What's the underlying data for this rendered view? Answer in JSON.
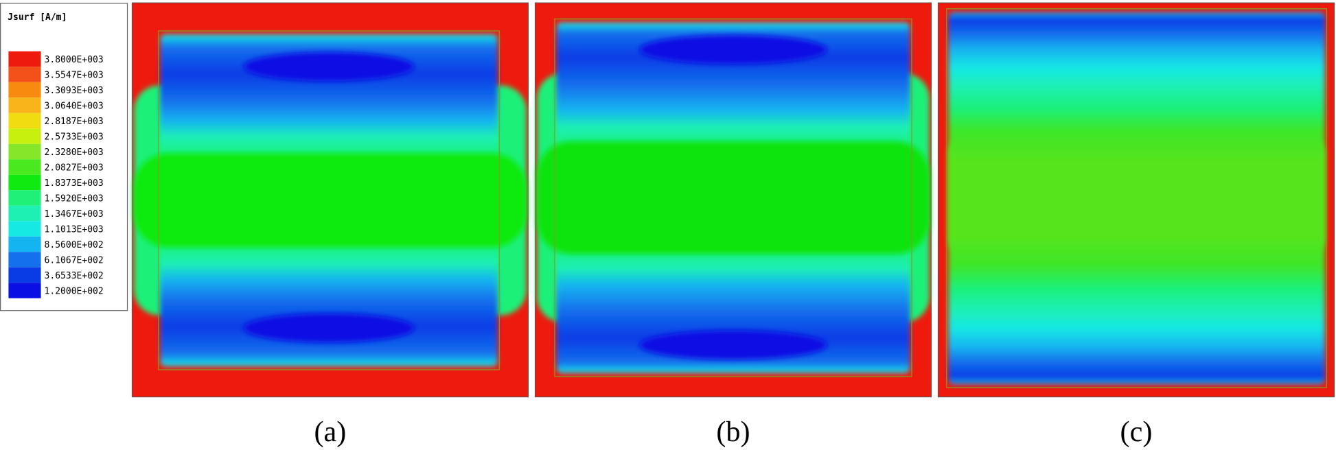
{
  "legend": {
    "title": "Jsurf [A/m]",
    "items": [
      {
        "label": "3.8000E+003",
        "color": "#ee1a0e"
      },
      {
        "label": "3.5547E+003",
        "color": "#f4501a"
      },
      {
        "label": "3.3093E+003",
        "color": "#f88a10"
      },
      {
        "label": "3.0640E+003",
        "color": "#f8b41a"
      },
      {
        "label": "2.8187E+003",
        "color": "#f0dc10"
      },
      {
        "label": "2.5733E+003",
        "color": "#c8f00e"
      },
      {
        "label": "2.3280E+003",
        "color": "#86e62a"
      },
      {
        "label": "2.0827E+003",
        "color": "#4ae81e"
      },
      {
        "label": "1.8373E+003",
        "color": "#10ea10"
      },
      {
        "label": "1.5920E+003",
        "color": "#1ef078"
      },
      {
        "label": "1.3467E+003",
        "color": "#1ef0b4"
      },
      {
        "label": "1.1013E+003",
        "color": "#16e8e4"
      },
      {
        "label": "8.5600E+002",
        "color": "#14b4f0"
      },
      {
        "label": "6.1067E+002",
        "color": "#1470ec"
      },
      {
        "label": "3.6533E+002",
        "color": "#0a3ce6"
      },
      {
        "label": "1.2000E+002",
        "color": "#0a10e4"
      }
    ]
  },
  "panels": [
    {
      "caption": "(a)"
    },
    {
      "caption": "(b)"
    },
    {
      "caption": "(c)"
    }
  ]
}
